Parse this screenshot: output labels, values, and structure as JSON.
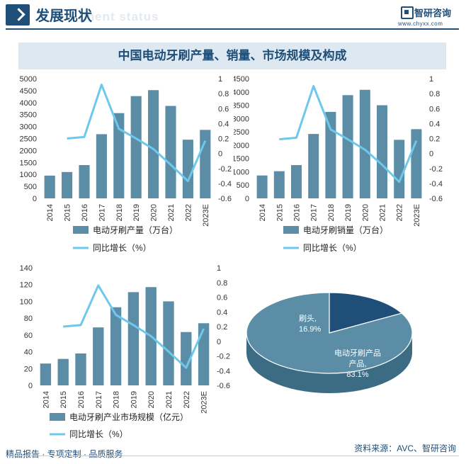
{
  "header": {
    "title": "发展现状",
    "ghost": "ment status",
    "logo_text": "智研咨询",
    "logo_url": "www.chyxx.com"
  },
  "panel_title": "中国电动牙刷产量、销量、市场规模及构成",
  "footer": {
    "left": "精品报告 · 专项定制 · 品质服务",
    "source": "资料来源：AVC、智研咨询"
  },
  "colors": {
    "bar": "#5b8ea6",
    "line": "#6ec8ec",
    "brand": "#1f4e79",
    "pie_main": "#5b8ea6",
    "pie_small": "#1f4e79"
  },
  "chart_data": [
    {
      "type": "bar+line",
      "id": "production",
      "categories": [
        "2014",
        "2015",
        "2016",
        "2017",
        "2018",
        "2019",
        "2020",
        "2021",
        "2022",
        "2023E"
      ],
      "series": [
        {
          "name": "电动牙刷产量（万台）",
          "type": "bar",
          "axis": "left",
          "values": [
            950,
            1100,
            1390,
            2680,
            3560,
            4270,
            4520,
            3860,
            2450,
            2860
          ]
        },
        {
          "name": "同比增长（%）",
          "type": "line",
          "axis": "right",
          "values": [
            null,
            0.2,
            0.22,
            0.92,
            0.33,
            0.2,
            0.06,
            -0.15,
            -0.37,
            0.17
          ]
        }
      ],
      "ylim_left": [
        0,
        5000
      ],
      "yticks_left": [
        0,
        500,
        1000,
        1500,
        2000,
        2500,
        3000,
        3500,
        4000,
        4500,
        5000
      ],
      "ylim_right": [
        -0.6,
        1
      ],
      "yticks_right": [
        -0.6,
        -0.4,
        -0.2,
        0,
        0.2,
        0.4,
        0.6,
        0.8,
        1
      ],
      "legend": [
        "电动牙刷产量（万台）",
        "同比增长（%）"
      ]
    },
    {
      "type": "bar+line",
      "id": "sales",
      "categories": [
        "2014",
        "2015",
        "2016",
        "2017",
        "2018",
        "2019",
        "2020",
        "2021",
        "2022",
        "2023E"
      ],
      "series": [
        {
          "name": "电动牙刷销量（万台）",
          "type": "bar",
          "axis": "left",
          "values": [
            860,
            1020,
            1250,
            2420,
            3250,
            3880,
            4080,
            3500,
            2200,
            2600
          ]
        },
        {
          "name": "同比增长（%）",
          "type": "line",
          "axis": "right",
          "values": [
            null,
            0.19,
            0.21,
            0.9,
            0.32,
            0.19,
            0.05,
            -0.15,
            -0.38,
            0.17
          ]
        }
      ],
      "ylim_left": [
        0,
        4500
      ],
      "yticks_left": [
        0,
        500,
        1000,
        1500,
        2000,
        2500,
        3000,
        3500,
        4000,
        4500
      ],
      "ylim_right": [
        -0.6,
        1
      ],
      "yticks_right": [
        -0.6,
        -0.4,
        -0.2,
        0,
        0.2,
        0.4,
        0.6,
        0.8,
        1
      ],
      "legend": [
        "电动牙刷销量（万台）",
        "同比增长（%）"
      ]
    },
    {
      "type": "bar+line",
      "id": "market",
      "categories": [
        "2014",
        "2015",
        "2016",
        "2017",
        "2018",
        "2019",
        "2020",
        "2021",
        "2022",
        "2023E"
      ],
      "series": [
        {
          "name": "电动牙刷产业市场规模（亿元）",
          "type": "bar",
          "axis": "left",
          "values": [
            26,
            31.5,
            38,
            69,
            93,
            111,
            117,
            100,
            63.5,
            74
          ]
        },
        {
          "name": "同比增长（%）",
          "type": "line",
          "axis": "right",
          "values": [
            null,
            0.2,
            0.22,
            0.76,
            0.36,
            0.22,
            0.07,
            -0.14,
            -0.36,
            0.17
          ]
        }
      ],
      "ylim_left": [
        0,
        140
      ],
      "yticks_left": [
        0,
        20,
        40,
        60,
        80,
        100,
        120,
        140
      ],
      "ylim_right": [
        -0.6,
        1
      ],
      "yticks_right": [
        -0.6,
        -0.4,
        -0.2,
        0,
        0.2,
        0.4,
        0.6,
        0.8,
        1
      ],
      "legend": [
        "电动牙刷产业市场规模（亿元）",
        "同比增长（%）"
      ]
    },
    {
      "type": "pie",
      "id": "composition",
      "slices": [
        {
          "label": "电动牙刷产品",
          "value": 83.1,
          "display": "83.1%"
        },
        {
          "label": "刷头",
          "value": 16.9,
          "display": "16.9%"
        }
      ]
    }
  ]
}
